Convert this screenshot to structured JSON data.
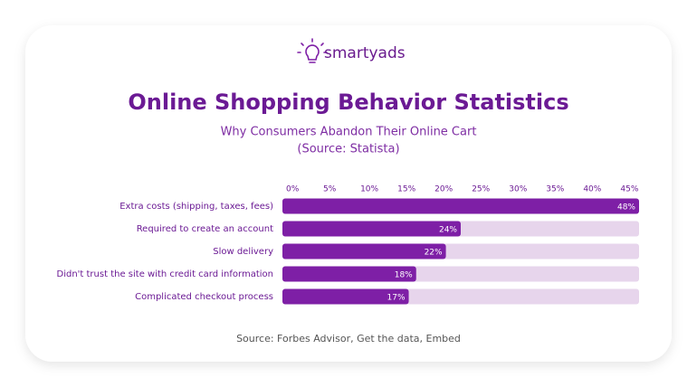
{
  "brand": "smartyads",
  "chart_data": {
    "type": "hbar",
    "title": "Online Shopping Behavior Statistics",
    "subtitle": "Why Consumers Abandon Their Online Cart",
    "source_note": "(Source: Statista)",
    "categories": [
      "Extra costs (shipping, taxes, fees)",
      "Required to create an account",
      "Slow delivery",
      "Didn't trust the site with credit card information",
      "Complicated checkout process"
    ],
    "values": [
      48,
      24,
      22,
      18,
      17
    ],
    "value_labels": [
      "48%",
      "24%",
      "22%",
      "18%",
      "17%"
    ],
    "color": "#7e1fa6",
    "track_color": "#e7d5ec",
    "xlim": [
      0,
      48
    ],
    "xticks": [
      {
        "value": 0,
        "label": "0%"
      },
      {
        "value": 5,
        "label": "5%"
      },
      {
        "value": 10,
        "label": "10%"
      },
      {
        "value": 15,
        "label": "15%"
      },
      {
        "value": 20,
        "label": "20%"
      },
      {
        "value": 25,
        "label": "25%"
      },
      {
        "value": 30,
        "label": "30%"
      },
      {
        "value": 35,
        "label": "35%"
      },
      {
        "value": 40,
        "label": "40%"
      },
      {
        "value": 45,
        "label": "45%"
      }
    ]
  },
  "footer": {
    "text": "Source: Forbes Advisor, Get the data, Embed"
  }
}
